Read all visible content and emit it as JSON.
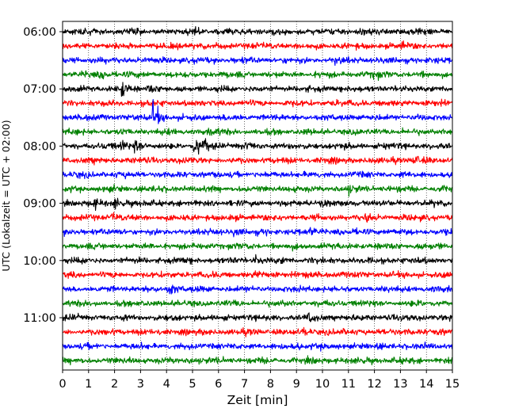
{
  "chart_data": {
    "type": "line",
    "title": "",
    "xlabel": "Zeit  [min]",
    "ylabel": "UTC (Lokalzeit = UTC + 02:00)",
    "xlim": [
      0,
      15
    ],
    "x_ticks": [
      0,
      1,
      2,
      3,
      4,
      5,
      6,
      7,
      8,
      9,
      10,
      11,
      12,
      13,
      14,
      15
    ],
    "grid": {
      "x": true,
      "y": false,
      "style": "dotted"
    },
    "y_axis_inverted": true,
    "y_ticks": [
      "06:00",
      "07:00",
      "08:00",
      "09:00",
      "10:00",
      "11:00"
    ],
    "trace_interval_minutes": 15,
    "trace_colors": [
      "#000000",
      "#ff0000",
      "#0000ff",
      "#008000"
    ],
    "series": [
      {
        "start": "06:00",
        "events": [
          [
            5.0,
            0.15
          ]
        ]
      },
      {
        "start": "06:15",
        "events": [
          [
            13.1,
            0.1
          ]
        ]
      },
      {
        "start": "06:30",
        "events": [
          [
            10.5,
            0.1
          ]
        ]
      },
      {
        "start": "06:45",
        "events": [
          [
            1.5,
            0.25
          ],
          [
            12.0,
            0.2
          ]
        ]
      },
      {
        "start": "07:00",
        "events": [
          [
            2.3,
            0.4
          ],
          [
            3.3,
            0.2
          ]
        ]
      },
      {
        "start": "07:15",
        "events": []
      },
      {
        "start": "07:30",
        "events": [
          [
            3.5,
            1.0
          ],
          [
            6.6,
            0.15
          ]
        ]
      },
      {
        "start": "07:45",
        "events": [
          [
            5.7,
            0.15
          ]
        ]
      },
      {
        "start": "08:00",
        "events": [
          [
            2.3,
            0.3
          ],
          [
            2.8,
            0.45
          ],
          [
            5.1,
            0.7
          ],
          [
            5.5,
            0.25
          ],
          [
            7.1,
            0.15
          ]
        ]
      },
      {
        "start": "08:15",
        "events": [
          [
            13.5,
            0.25
          ]
        ]
      },
      {
        "start": "08:30",
        "events": []
      },
      {
        "start": "08:45",
        "events": [
          [
            11.0,
            0.2
          ]
        ]
      },
      {
        "start": "09:00",
        "events": [
          [
            1.2,
            0.2
          ],
          [
            2.0,
            0.3
          ],
          [
            10.0,
            0.15
          ]
        ]
      },
      {
        "start": "09:15",
        "events": [
          [
            1.9,
            0.15
          ],
          [
            11.7,
            0.15
          ]
        ]
      },
      {
        "start": "09:30",
        "events": [
          [
            6.6,
            0.2
          ],
          [
            9.5,
            0.2
          ]
        ]
      },
      {
        "start": "09:45",
        "events": [
          [
            13.5,
            0.15
          ]
        ]
      },
      {
        "start": "10:00",
        "events": [
          [
            7.4,
            0.25
          ]
        ]
      },
      {
        "start": "10:15",
        "events": [
          [
            7.4,
            0.15
          ]
        ]
      },
      {
        "start": "10:30",
        "events": [
          [
            4.1,
            0.45
          ]
        ]
      },
      {
        "start": "10:45",
        "events": []
      },
      {
        "start": "11:00",
        "events": [
          [
            9.5,
            0.2
          ]
        ]
      },
      {
        "start": "11:15",
        "events": [
          [
            9.3,
            0.15
          ],
          [
            13.3,
            0.15
          ]
        ]
      },
      {
        "start": "11:30",
        "events": [
          [
            9.0,
            0.15
          ]
        ]
      },
      {
        "start": "11:45",
        "events": [
          [
            4.9,
            0.15
          ]
        ]
      }
    ]
  }
}
